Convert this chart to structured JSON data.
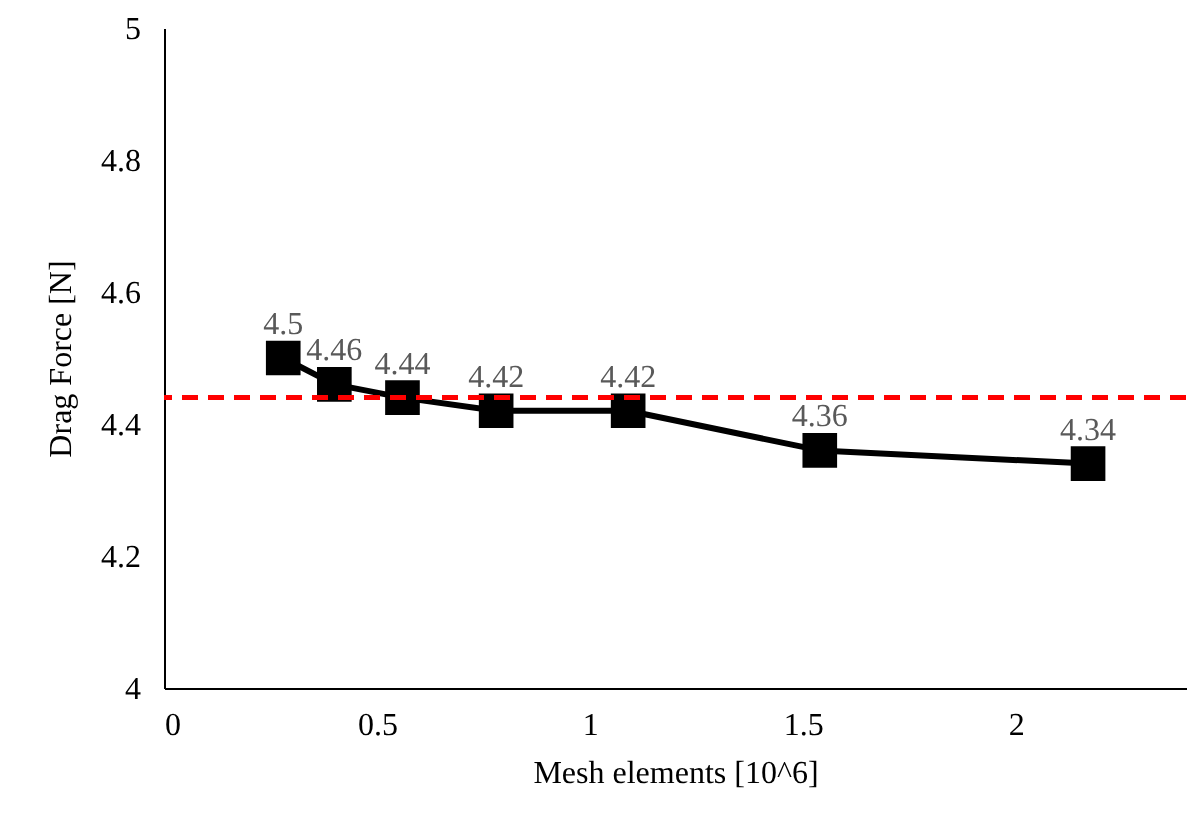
{
  "chart_data": {
    "type": "line",
    "xlabel": "Mesh elements [10^6]",
    "ylabel": "Drag Force [N]",
    "x": [
      0.28,
      0.4,
      0.56,
      0.78,
      1.09,
      1.54,
      2.17
    ],
    "series": [
      {
        "color": "#000000",
        "values": [
          4.5,
          4.46,
          4.44,
          4.42,
          4.42,
          4.36,
          4.34
        ]
      }
    ],
    "xlim": [
      0,
      2.4
    ],
    "xticks": [
      0,
      0.5,
      1,
      1.5,
      2
    ],
    "ylim": [
      4,
      5
    ],
    "yticks": [
      4,
      4.2,
      4.4,
      4.6,
      4.8,
      5
    ],
    "ref_lines": [
      {
        "axis": "y",
        "value": 4.44,
        "color": "#ff0000",
        "line_style": "dashed"
      }
    ],
    "marker": "square",
    "line_style": "solid",
    "data_labels": true
  }
}
